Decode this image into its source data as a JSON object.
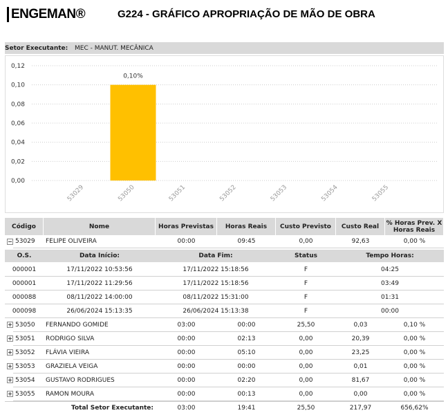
{
  "header": {
    "logo": "ENGEMAN®",
    "title": "G224 - GRÁFICO APROPRIAÇÃO DE MÃO DE OBRA",
    "sector_label": "Setor Executante:",
    "sector_value": "MEC - MANUT. MECÂNICA"
  },
  "chart_data": {
    "type": "bar",
    "categories": [
      "53029",
      "53050",
      "53051",
      "53052",
      "53053",
      "53054",
      "53055"
    ],
    "values": [
      0,
      0.1,
      0,
      0,
      0,
      0,
      0
    ],
    "value_labels": [
      null,
      "0,10%",
      null,
      null,
      null,
      null,
      null
    ],
    "color": "#ffc000",
    "ylim": [
      0,
      0.12
    ],
    "yticks": [
      {
        "value": 0,
        "label": "0,00"
      },
      {
        "value": 0.02,
        "label": "0,02"
      },
      {
        "value": 0.04,
        "label": "0,04"
      },
      {
        "value": 0.06,
        "label": "0,06"
      },
      {
        "value": 0.08,
        "label": "0,08"
      },
      {
        "value": 0.1,
        "label": "0,10"
      },
      {
        "value": 0.12,
        "label": "0,12"
      }
    ],
    "grid": true
  },
  "table": {
    "headers": [
      "Código",
      "Nome",
      "Horas Previstas",
      "Horas Reais",
      "Custo Previsto",
      "Custo Real",
      "% Horas Prev. X Horas Reais"
    ],
    "rows": [
      [
        "53029",
        "FELIPE OLIVEIRA",
        "00:00",
        "09:45",
        "0,00",
        "92,63",
        "0,00 %"
      ],
      [
        "53050",
        "FERNANDO GOMIDE",
        "03:00",
        "00:00",
        "25,50",
        "0,03",
        "0,10 %"
      ],
      [
        "53051",
        "RODRIGO SILVA",
        "00:00",
        "02:13",
        "0,00",
        "20,39",
        "0,00 %"
      ],
      [
        "53052",
        "FLÁVIA VIEIRA",
        "00:00",
        "05:10",
        "0,00",
        "23,25",
        "0,00 %"
      ],
      [
        "53053",
        "GRAZIELA VEIGA",
        "00:00",
        "00:00",
        "0,00",
        "0,01",
        "0,00 %"
      ],
      [
        "53054",
        "GUSTAVO RODRIGUES",
        "00:00",
        "02:20",
        "0,00",
        "81,67",
        "0,00 %"
      ],
      [
        "53055",
        "RAMON MOURA",
        "00:00",
        "00:13",
        "0,00",
        "0,00",
        "0,00 %"
      ]
    ],
    "details": {
      "headers": [
        "O.S.",
        "Data Início:",
        "Data Fim:",
        "Status",
        "Tempo Horas:"
      ],
      "rows": [
        [
          "000001",
          "17/11/2022 10:53:56",
          "17/11/2022 15:18:56",
          "F",
          "04:25"
        ],
        [
          "000001",
          "17/11/2022 11:29:56",
          "17/11/2022 15:18:56",
          "F",
          "03:49"
        ],
        [
          "000088",
          "08/11/2022 14:00:00",
          "08/11/2022 15:31:00",
          "F",
          "01:31"
        ],
        [
          "000098",
          "26/06/2024 15:13:35",
          "26/06/2024 15:13:38",
          "F",
          "00:00"
        ]
      ]
    },
    "total": {
      "label": "Total Setor Executante:",
      "values": [
        "03:00",
        "19:41",
        "25,50",
        "217,97",
        "656,62%"
      ]
    }
  }
}
